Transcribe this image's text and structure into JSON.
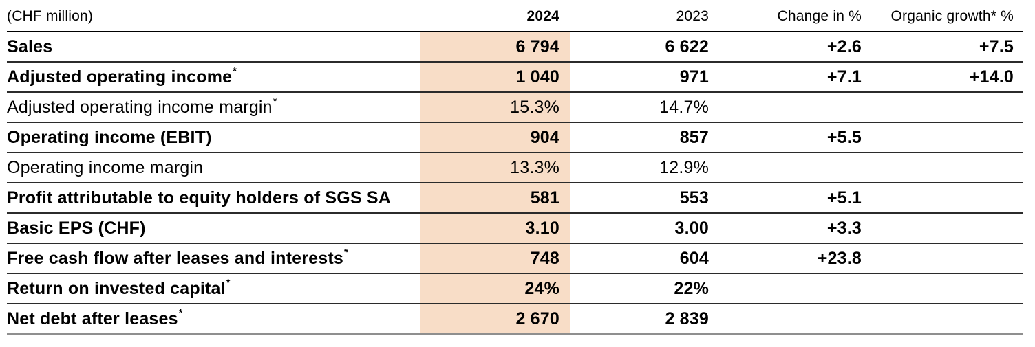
{
  "colors": {
    "highlight": "#f8ddc7",
    "row_border": "#2b2b2b",
    "bottom_border": "#8f8f8f"
  },
  "header": {
    "unit_label": "(CHF million)",
    "col_2024": "2024",
    "col_2023": "2023",
    "col_change": "Change in %",
    "col_organic": "Organic growth* %"
  },
  "rows": [
    {
      "label": "Sales",
      "sup": "",
      "v2024": "6 794",
      "v2023": "6 622",
      "change": "+2.6",
      "organic": "+7.5"
    },
    {
      "label": "Adjusted operating income",
      "sup": "*",
      "v2024": "1 040",
      "v2023": "971",
      "change": "+7.1",
      "organic": "+14.0"
    },
    {
      "label": "Adjusted operating income margin",
      "sup": "*",
      "v2024": "15.3%",
      "v2023": "14.7%",
      "change": "",
      "organic": ""
    },
    {
      "label": "Operating income (EBIT)",
      "sup": "",
      "v2024": "904",
      "v2023": "857",
      "change": "+5.5",
      "organic": ""
    },
    {
      "label": "Operating income margin",
      "sup": "",
      "v2024": "13.3%",
      "v2023": "12.9%",
      "change": "",
      "organic": ""
    },
    {
      "label": "Profit attributable to equity holders of SGS SA",
      "sup": "",
      "v2024": "581",
      "v2023": "553",
      "change": "+5.1",
      "organic": ""
    },
    {
      "label": "Basic EPS (CHF)",
      "sup": "",
      "v2024": "3.10",
      "v2023": "3.00",
      "change": "+3.3",
      "organic": ""
    },
    {
      "label": "Free cash flow after leases and interests",
      "sup": "*",
      "v2024": "748",
      "v2023": "604",
      "change": "+23.8",
      "organic": ""
    },
    {
      "label": "Return on invested capital",
      "sup": "*",
      "v2024": "24%",
      "v2023": "22%",
      "change": "",
      "organic": ""
    },
    {
      "label": "Net debt after leases",
      "sup": "*",
      "v2024": "2 670",
      "v2023": "2 839",
      "change": "",
      "organic": ""
    }
  ]
}
